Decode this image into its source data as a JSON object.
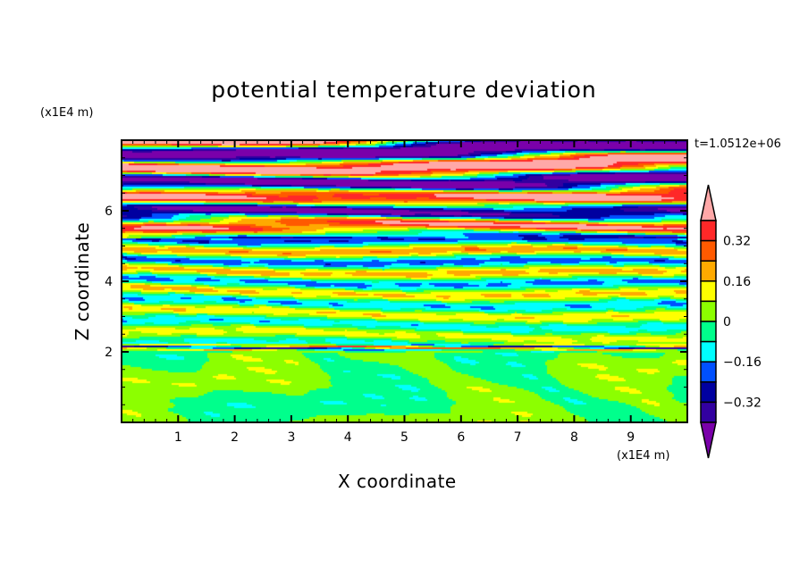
{
  "chart_data": {
    "type": "heatmap",
    "subtype": "filled-contour",
    "title": "potential temperature deviation",
    "xlabel": "X coordinate",
    "ylabel": "Z coordinate",
    "x_unit": "(x1E4 m)",
    "y_unit": "(x1E4 m)",
    "time_label": "t=1.0512e+06",
    "xlim": [
      0,
      10
    ],
    "ylim": [
      0,
      8
    ],
    "xticks": [
      1,
      2,
      3,
      4,
      5,
      6,
      7,
      8,
      9
    ],
    "yticks": [
      2,
      4,
      6
    ],
    "levels": [
      -0.4,
      -0.32,
      -0.24,
      -0.16,
      -0.08,
      0,
      0.08,
      0.16,
      0.24,
      0.32,
      0.4
    ],
    "colors": [
      "#7a00aa",
      "#3200a0",
      "#0000a0",
      "#0050ff",
      "#00ffff",
      "#00ff8c",
      "#8cff00",
      "#ffff00",
      "#ffaa00",
      "#ff5a00",
      "#ff2828",
      "#ffa8a8"
    ],
    "colorbar_ticks": [
      "0.32",
      "0.16",
      "0",
      "-0.16",
      "-0.32"
    ],
    "colorbar_tick_values": [
      0.32,
      0.16,
      0,
      -0.16,
      -0.32
    ],
    "colorbar_extend": "both",
    "field_regions": [
      {
        "z_range": [
          0,
          2
        ],
        "value_range": [
          -0.08,
          0.08
        ],
        "pattern": "large eddies"
      },
      {
        "z_range": [
          2,
          5.2
        ],
        "value_range": [
          -0.24,
          0.24
        ],
        "pattern": "thin horizontal layers"
      },
      {
        "z_range": [
          5.2,
          8
        ],
        "value_range": [
          -0.5,
          0.5
        ],
        "pattern": "strong horizontal bands"
      }
    ]
  }
}
